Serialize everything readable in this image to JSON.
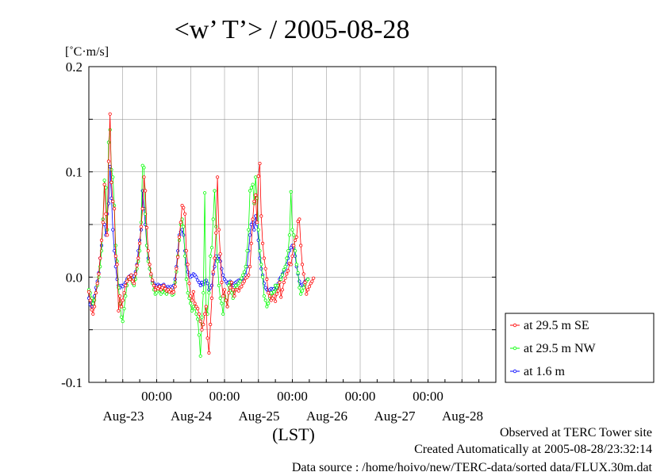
{
  "chart_data": {
    "type": "line",
    "title": "<w’ T’> / 2005-08-28",
    "ylabel": "[˚C·m/s]",
    "xlabel": "(LST)",
    "ylim": [
      -0.1,
      0.2
    ],
    "yticks": [
      -0.1,
      0.0,
      0.1,
      0.2
    ],
    "ytick_labels": [
      "-0.1",
      "0.0",
      "0.1",
      "0.2"
    ],
    "xlim": [
      0,
      6
    ],
    "grid": true,
    "legend_position": "right",
    "x_unit": "days since Aug-22 12:00 LST (30-min samples)",
    "xticks": [
      {
        "x": 1.0,
        "hour": "00:00",
        "date": "Aug-23"
      },
      {
        "x": 2.0,
        "hour": "00:00",
        "date": "Aug-24"
      },
      {
        "x": 3.0,
        "hour": "00:00",
        "date": "Aug-25"
      },
      {
        "x": 4.0,
        "hour": "00:00",
        "date": "Aug-26"
      },
      {
        "x": 5.0,
        "hour": "00:00",
        "date": "Aug-27"
      },
      {
        "x": 6.0,
        "hour": "00:00",
        "date": "Aug-28"
      }
    ],
    "series": [
      {
        "name": "at 29.5 m SE",
        "color": "#ff0000",
        "x_start": 0,
        "x_step": 0.0208333,
        "values": [
          -0.014,
          -0.022,
          -0.031,
          -0.035,
          -0.028,
          -0.015,
          -0.006,
          0.003,
          0.018,
          0.035,
          0.052,
          0.088,
          0.06,
          0.04,
          0.11,
          0.155,
          0.09,
          0.072,
          0.065,
          0.02,
          0.012,
          -0.032,
          -0.018,
          -0.028,
          -0.022,
          -0.015,
          -0.008,
          -0.004,
          0.0,
          -0.002,
          0.002,
          -0.004,
          -0.006,
          0.003,
          0.011,
          0.018,
          0.032,
          0.048,
          0.065,
          0.095,
          0.082,
          0.047,
          0.025,
          0.012,
          0.003,
          -0.003,
          -0.008,
          -0.012,
          -0.01,
          -0.011,
          -0.009,
          -0.012,
          -0.01,
          -0.008,
          -0.011,
          -0.013,
          -0.012,
          -0.014,
          -0.012,
          -0.015,
          -0.014,
          -0.009,
          0.008,
          0.019,
          0.038,
          0.052,
          0.068,
          0.066,
          0.06,
          0.025,
          0.012,
          -0.006,
          -0.018,
          -0.022,
          -0.014,
          -0.025,
          -0.028,
          -0.03,
          -0.035,
          -0.042,
          -0.05,
          -0.045,
          -0.035,
          -0.028,
          -0.058,
          -0.072,
          -0.045,
          -0.02,
          0.005,
          0.018,
          0.042,
          0.095,
          0.045,
          0.022,
          -0.005,
          -0.018,
          -0.012,
          -0.022,
          -0.028,
          -0.015,
          -0.01,
          -0.005,
          -0.012,
          -0.018,
          -0.012,
          -0.012,
          -0.013,
          -0.01,
          -0.009,
          -0.006,
          -0.004,
          -0.001,
          0.0,
          0.002,
          0.01,
          0.032,
          0.055,
          0.072,
          0.078,
          0.052,
          0.096,
          0.108,
          0.058,
          0.032,
          0.018,
          0.008,
          -0.002,
          -0.015,
          -0.018,
          -0.022,
          -0.02,
          -0.018,
          -0.023,
          -0.016,
          -0.013,
          -0.005,
          -0.019,
          -0.012,
          -0.005,
          -0.001,
          0.003,
          0.006,
          0.013,
          0.012,
          0.02,
          0.03,
          0.035,
          0.038,
          0.053,
          0.055,
          0.03,
          0.012,
          0.003,
          -0.005,
          -0.016,
          -0.012,
          -0.009,
          -0.006,
          -0.004,
          -0.001
        ]
      },
      {
        "name": "at 29.5 m NW",
        "color": "#00ff00",
        "x_start": 0,
        "x_step": 0.0208333,
        "values": [
          -0.012,
          -0.015,
          -0.02,
          -0.025,
          -0.022,
          -0.015,
          -0.008,
          0.0,
          0.01,
          0.025,
          0.055,
          0.092,
          0.085,
          0.045,
          0.128,
          0.14,
          0.102,
          0.095,
          0.068,
          0.03,
          0.015,
          -0.01,
          -0.025,
          -0.038,
          -0.042,
          -0.03,
          -0.018,
          -0.008,
          -0.002,
          0.0,
          -0.003,
          -0.006,
          -0.008,
          -0.002,
          0.008,
          0.015,
          0.025,
          0.052,
          0.106,
          0.104,
          0.06,
          0.03,
          0.015,
          0.008,
          0.001,
          -0.006,
          -0.012,
          -0.016,
          -0.015,
          -0.013,
          -0.012,
          -0.016,
          -0.014,
          -0.011,
          -0.015,
          -0.016,
          -0.013,
          -0.014,
          -0.012,
          -0.017,
          -0.016,
          -0.005,
          0.005,
          0.02,
          0.035,
          0.05,
          0.055,
          0.048,
          0.02,
          -0.002,
          -0.015,
          -0.02,
          -0.025,
          -0.032,
          -0.028,
          -0.03,
          -0.035,
          -0.04,
          -0.055,
          -0.075,
          -0.038,
          -0.015,
          0.08,
          -0.03,
          -0.035,
          -0.015,
          0.02,
          0.028,
          0.055,
          0.082,
          0.048,
          0.015,
          -0.008,
          -0.02,
          -0.025,
          -0.035,
          -0.018,
          -0.022,
          -0.028,
          -0.008,
          -0.005,
          -0.015,
          -0.02,
          -0.012,
          -0.008,
          -0.01,
          -0.006,
          -0.004,
          -0.001,
          0.002,
          0.005,
          0.01,
          0.025,
          0.045,
          0.082,
          0.085,
          0.088,
          0.07,
          0.095,
          0.075,
          0.045,
          0.025,
          0.012,
          0.0,
          -0.018,
          -0.022,
          -0.028,
          -0.025,
          -0.02,
          -0.015,
          -0.018,
          -0.014,
          -0.008,
          -0.014,
          -0.008,
          -0.005,
          -0.002,
          0.002,
          0.007,
          0.01,
          0.018,
          0.025,
          0.04,
          0.081,
          0.045,
          0.04,
          0.025,
          0.012,
          0.004,
          -0.01,
          -0.016,
          -0.013,
          -0.01,
          -0.007,
          -0.004,
          -0.002
        ]
      },
      {
        "name": "at 1.6 m",
        "color": "#0000ff",
        "x_start": 0,
        "x_step": 0.0208333,
        "values": [
          -0.02,
          -0.026,
          -0.028,
          -0.024,
          -0.018,
          -0.01,
          -0.004,
          0.004,
          0.018,
          0.03,
          0.055,
          0.05,
          0.04,
          0.06,
          0.07,
          0.105,
          0.075,
          0.045,
          0.025,
          0.01,
          -0.002,
          -0.008,
          -0.01,
          -0.008,
          -0.009,
          -0.007,
          -0.005,
          -0.002,
          0.0,
          0.001,
          0.002,
          0.0,
          0.001,
          0.005,
          0.012,
          0.025,
          0.035,
          0.045,
          0.082,
          0.065,
          0.05,
          0.03,
          0.018,
          0.008,
          0.002,
          -0.004,
          -0.006,
          -0.008,
          -0.008,
          -0.007,
          -0.008,
          -0.009,
          -0.008,
          -0.007,
          -0.009,
          -0.01,
          -0.009,
          -0.01,
          -0.009,
          -0.01,
          -0.008,
          -0.002,
          0.01,
          0.025,
          0.04,
          0.043,
          0.045,
          0.04,
          0.025,
          0.012,
          0.005,
          0.002,
          0.0,
          0.001,
          0.003,
          0.002,
          0.0,
          -0.003,
          -0.005,
          -0.008,
          -0.005,
          -0.007,
          -0.004,
          -0.003,
          -0.006,
          -0.012,
          -0.01,
          -0.008,
          0.003,
          0.01,
          0.02,
          0.018,
          0.02,
          0.015,
          0.008,
          0.002,
          -0.002,
          -0.004,
          -0.006,
          -0.005,
          -0.004,
          -0.006,
          -0.008,
          -0.006,
          -0.005,
          -0.004,
          -0.003,
          -0.003,
          -0.002,
          -0.001,
          0.0,
          0.002,
          0.01,
          0.025,
          0.04,
          0.05,
          0.052,
          0.045,
          0.058,
          0.05,
          0.035,
          0.018,
          0.008,
          0.002,
          -0.006,
          -0.01,
          -0.012,
          -0.013,
          -0.012,
          -0.011,
          -0.012,
          -0.011,
          -0.008,
          -0.01,
          -0.006,
          -0.002,
          0.0,
          0.003,
          0.006,
          0.008,
          0.012,
          0.018,
          0.025,
          0.028,
          0.03,
          0.028,
          0.02,
          0.01,
          0.003,
          -0.004,
          -0.008,
          -0.007,
          -0.006,
          -0.004,
          -0.003,
          -0.002
        ]
      }
    ]
  },
  "footer": {
    "line1": "Observed at TERC Tower site",
    "line2": "Created Automatically at 2005-08-28/23:32:14",
    "line3": "Data source : /home/hoivo/new/TERC-data/sorted  data/FLUX.30m.dat"
  }
}
